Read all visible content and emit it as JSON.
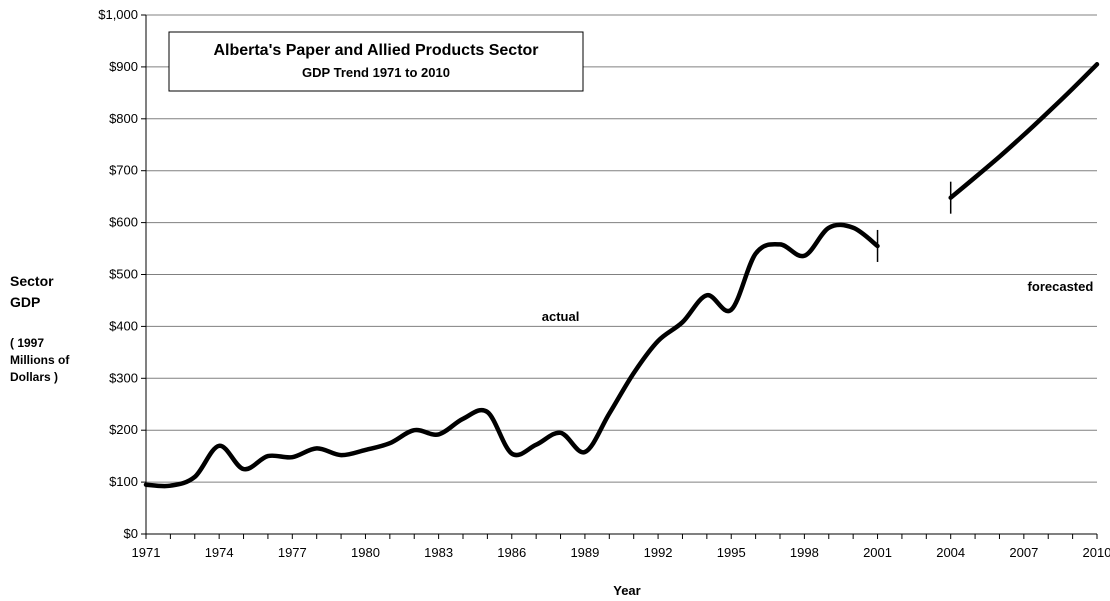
{
  "chart_data": {
    "type": "line",
    "title": "Alberta's Paper and Allied Products Sector",
    "subtitle": "GDP Trend  1971 to 2010",
    "xlabel": "Year",
    "ylabel_lines": [
      "Sector",
      "GDP"
    ],
    "ylabel_unit_lines": [
      "( 1997",
      "Millions of",
      "Dollars )"
    ],
    "xlim": [
      1971,
      2010
    ],
    "ylim": [
      0,
      1000
    ],
    "x_ticks": [
      1971,
      1974,
      1977,
      1980,
      1983,
      1986,
      1989,
      1992,
      1995,
      1998,
      2001,
      2004,
      2007,
      2010
    ],
    "y_ticks": [
      "$0",
      "$100",
      "$200",
      "$300",
      "$400",
      "$500",
      "$600",
      "$700",
      "$800",
      "$900",
      "$1,000"
    ],
    "y_tick_values": [
      0,
      100,
      200,
      300,
      400,
      500,
      600,
      700,
      800,
      900,
      1000
    ],
    "grid": "horizontal",
    "series": [
      {
        "name": "actual",
        "color": "#000000",
        "x": [
          1971,
          1972,
          1973,
          1974,
          1975,
          1976,
          1977,
          1978,
          1979,
          1980,
          1981,
          1982,
          1983,
          1984,
          1985,
          1986,
          1987,
          1988,
          1989,
          1990,
          1991,
          1992,
          1993,
          1994,
          1995,
          1996,
          1997,
          1998,
          1999,
          2000,
          2001
        ],
        "values": [
          95,
          93,
          110,
          170,
          125,
          150,
          148,
          165,
          152,
          162,
          175,
          200,
          192,
          222,
          235,
          155,
          172,
          195,
          158,
          232,
          310,
          372,
          408,
          460,
          432,
          540,
          558,
          536,
          590,
          590,
          555
        ]
      },
      {
        "name": "forecasted",
        "color": "#000000",
        "x": [
          2004,
          2005,
          2006,
          2007,
          2008,
          2009,
          2010
        ],
        "values": [
          648,
          687,
          727,
          769,
          813,
          858,
          905
        ]
      }
    ],
    "annotations": [
      {
        "text": "actual",
        "x": 1988,
        "y": 410
      },
      {
        "text": "forecasted",
        "x": 2008.5,
        "y": 468
      }
    ],
    "break_markers": [
      {
        "x": 2001,
        "y": 555
      },
      {
        "x": 2004,
        "y": 648
      }
    ]
  }
}
